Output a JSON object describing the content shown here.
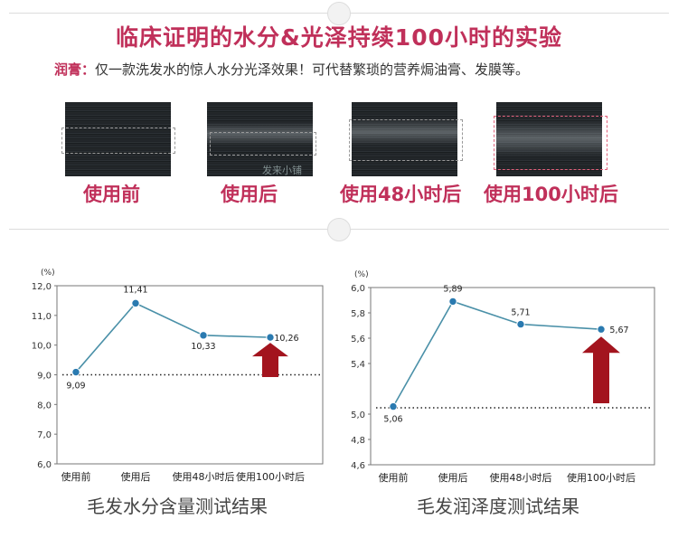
{
  "header": {
    "title": "临床证明的水分&光泽持续100小时的实验",
    "subtitle_highlight": "润膏：",
    "subtitle_text": "仅一款洗发水的惊人水分光泽效果！可代替繁琐的营养焗油膏、发膜等。"
  },
  "swatches": {
    "labels": [
      "使用前",
      "使用后",
      "使用48小时后",
      "使用100小时后"
    ],
    "watermark": "发来小铺"
  },
  "colors": {
    "accent": "#c0305a",
    "line": "#4a90a8",
    "point": "#2a7ab0",
    "arrow": "#a3141e"
  },
  "chart_data": [
    {
      "type": "line",
      "title": "毛发水分含量测试结果",
      "unit_label": "(%)",
      "categories": [
        "使用前",
        "使用后",
        "使用48小时后",
        "使用100小时后"
      ],
      "values": [
        9.09,
        11.41,
        10.33,
        10.26
      ],
      "value_labels": [
        "9,09",
        "11,41",
        "10,33",
        "10,26"
      ],
      "ylim": [
        6.0,
        12.0
      ],
      "yticks": [
        6.0,
        7.0,
        8.0,
        9.0,
        10.0,
        11.0,
        12.0
      ],
      "ytick_labels": [
        "6,0",
        "7,0",
        "8,0",
        "9,0",
        "10,0",
        "11,0",
        "12,0"
      ],
      "baseline": 9.0,
      "grid": false
    },
    {
      "type": "line",
      "title": "毛发润泽度测试结果",
      "unit_label": "(%)",
      "categories": [
        "使用前",
        "使用后",
        "使用48小时后",
        "使用100小时后"
      ],
      "values": [
        5.06,
        5.89,
        5.71,
        5.67
      ],
      "value_labels": [
        "5,06",
        "5,89",
        "5,71",
        "5,67"
      ],
      "ylim": [
        4.6,
        6.0
      ],
      "yticks": [
        4.6,
        4.8,
        5.0,
        5.2,
        5.4,
        5.6,
        5.8,
        6.0
      ],
      "ytick_labels": [
        "4,6",
        "4,8",
        "5,0",
        "5,4",
        "5,6",
        "5,8",
        "6,0"
      ],
      "ytick_label_values": [
        4.6,
        4.8,
        5.0,
        5.4,
        5.6,
        5.8,
        6.0
      ],
      "baseline": 5.05,
      "grid": false
    }
  ]
}
